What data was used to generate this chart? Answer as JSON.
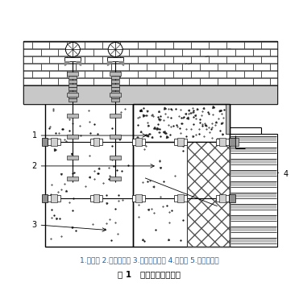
{
  "title": "图 1   炉墙及炉顶结构图",
  "caption": "1.锁固砖 2.轻质粘土砖 3.低水泥浇注料 4.纤维板 5.轻质流注料",
  "bg_color": "#ffffff",
  "line_color": "#000000",
  "text_color": "#000000",
  "blue_text_color": "#1a5fa8",
  "fig_width": 3.71,
  "fig_height": 3.61,
  "dpi": 100
}
